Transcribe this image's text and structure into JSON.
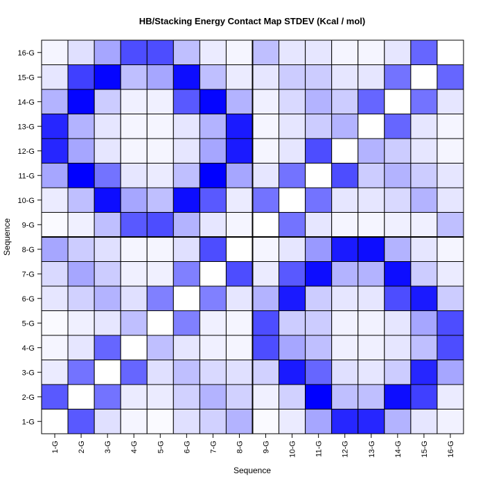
{
  "chart_data": {
    "type": "heatmap",
    "title": "HB/Stacking Energy Contact Map STDEV (Kcal / mol)",
    "xlabel": "Sequence",
    "ylabel": "Sequence",
    "x_categories": [
      "1-G",
      "2-G",
      "3-G",
      "4-G",
      "5-G",
      "6-G",
      "7-G",
      "8-G",
      "9-G",
      "10-G",
      "11-G",
      "12-G",
      "13-G",
      "14-G",
      "15-G",
      "16-G"
    ],
    "y_categories": [
      "1-G",
      "2-G",
      "3-G",
      "4-G",
      "5-G",
      "6-G",
      "7-G",
      "8-G",
      "9-G",
      "10-G",
      "11-G",
      "12-G",
      "13-G",
      "14-G",
      "15-G",
      "16-G"
    ],
    "value_note": "relative intensity 0 (white) to 1 (blue); rows listed from 1-G (bottom) to 16-G (top)",
    "values": [
      [
        0.0,
        0.65,
        0.12,
        0.04,
        0.02,
        0.12,
        0.18,
        0.3,
        0.02,
        0.08,
        0.35,
        0.85,
        0.85,
        0.3,
        0.1,
        0.05
      ],
      [
        0.65,
        0.0,
        0.55,
        0.08,
        0.08,
        0.18,
        0.3,
        0.18,
        0.06,
        0.18,
        1.0,
        0.25,
        0.25,
        0.95,
        0.75,
        0.08
      ],
      [
        0.08,
        0.55,
        0.0,
        0.6,
        0.12,
        0.25,
        0.15,
        0.12,
        0.18,
        0.9,
        0.6,
        0.12,
        0.1,
        0.2,
        0.85,
        0.35
      ],
      [
        0.04,
        0.1,
        0.6,
        0.0,
        0.25,
        0.1,
        0.06,
        0.04,
        0.7,
        0.35,
        0.25,
        0.06,
        0.06,
        0.1,
        0.25,
        0.7
      ],
      [
        0.02,
        0.06,
        0.1,
        0.25,
        0.0,
        0.5,
        0.06,
        0.04,
        0.7,
        0.2,
        0.2,
        0.05,
        0.05,
        0.1,
        0.35,
        0.7
      ],
      [
        0.1,
        0.18,
        0.3,
        0.12,
        0.5,
        0.0,
        0.5,
        0.1,
        0.3,
        0.9,
        0.2,
        0.1,
        0.1,
        0.7,
        0.9,
        0.2
      ],
      [
        0.15,
        0.35,
        0.2,
        0.06,
        0.06,
        0.5,
        0.0,
        0.7,
        0.08,
        0.65,
        0.95,
        0.3,
        0.3,
        0.95,
        0.2,
        0.08
      ],
      [
        0.35,
        0.2,
        0.12,
        0.04,
        0.04,
        0.12,
        0.7,
        0.0,
        0.04,
        0.1,
        0.4,
        0.9,
        0.95,
        0.3,
        0.1,
        0.04
      ],
      [
        0.02,
        0.06,
        0.25,
        0.65,
        0.7,
        0.3,
        0.1,
        0.04,
        0.0,
        0.55,
        0.1,
        0.04,
        0.04,
        0.06,
        0.06,
        0.25
      ],
      [
        0.08,
        0.25,
        0.95,
        0.35,
        0.25,
        0.95,
        0.65,
        0.08,
        0.55,
        0.0,
        0.55,
        0.1,
        0.1,
        0.15,
        0.3,
        0.1
      ],
      [
        0.35,
        1.0,
        0.55,
        0.1,
        0.08,
        0.25,
        1.0,
        0.35,
        0.1,
        0.55,
        0.0,
        0.7,
        0.2,
        0.3,
        0.2,
        0.1
      ],
      [
        0.85,
        0.35,
        0.1,
        0.04,
        0.04,
        0.1,
        0.35,
        0.9,
        0.04,
        0.1,
        0.7,
        0.0,
        0.3,
        0.2,
        0.1,
        0.04
      ],
      [
        0.85,
        0.3,
        0.1,
        0.04,
        0.04,
        0.1,
        0.3,
        0.9,
        0.04,
        0.1,
        0.2,
        0.3,
        0.0,
        0.6,
        0.1,
        0.04
      ],
      [
        0.3,
        0.98,
        0.2,
        0.06,
        0.06,
        0.65,
        0.98,
        0.3,
        0.06,
        0.15,
        0.3,
        0.2,
        0.6,
        0.0,
        0.55,
        0.1
      ],
      [
        0.1,
        0.75,
        0.98,
        0.25,
        0.35,
        0.95,
        0.25,
        0.08,
        0.1,
        0.2,
        0.2,
        0.1,
        0.1,
        0.55,
        0.0,
        0.6
      ],
      [
        0.04,
        0.12,
        0.35,
        0.7,
        0.7,
        0.25,
        0.08,
        0.04,
        0.25,
        0.1,
        0.1,
        0.04,
        0.04,
        0.1,
        0.6,
        0.0
      ]
    ],
    "color_low": "#ffffff",
    "color_high": "#0000ff",
    "grid": true
  }
}
